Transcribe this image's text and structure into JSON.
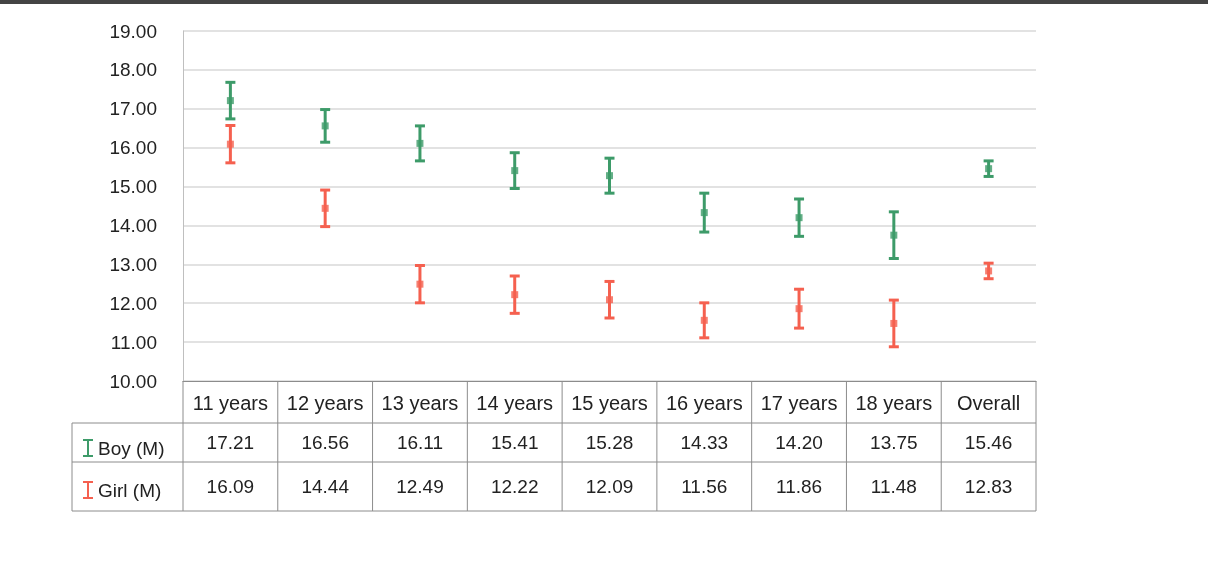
{
  "chart_data": {
    "type": "scatter",
    "categories": [
      "11 years",
      "12 years",
      "13 years",
      "14 years",
      "15 years",
      "16 years",
      "17 years",
      "18 years",
      "Overall"
    ],
    "series": [
      {
        "name": "Boy (M)",
        "color": "#3d9b69",
        "values": [
          17.21,
          16.56,
          16.11,
          15.41,
          15.28,
          14.33,
          14.2,
          13.75,
          15.46
        ],
        "errors": [
          0.47,
          0.42,
          0.45,
          0.46,
          0.45,
          0.5,
          0.48,
          0.6,
          0.2
        ],
        "value_labels": [
          "17.21",
          "16.56",
          "16.11",
          "15.41",
          "15.28",
          "14.33",
          "14.20",
          "13.75",
          "15.46"
        ]
      },
      {
        "name": "Girl (M)",
        "color": "#f5604f",
        "values": [
          16.09,
          14.44,
          12.49,
          12.22,
          12.09,
          11.56,
          11.86,
          11.48,
          12.83
        ],
        "errors": [
          0.48,
          0.47,
          0.48,
          0.48,
          0.47,
          0.45,
          0.5,
          0.6,
          0.2
        ],
        "value_labels": [
          "16.09",
          "14.44",
          "12.49",
          "12.22",
          "12.09",
          "11.56",
          "11.86",
          "11.48",
          "12.83"
        ]
      }
    ],
    "ylim": [
      10,
      19
    ],
    "yticks": [
      {
        "value": 10,
        "label": "10.00"
      },
      {
        "value": 11,
        "label": "11.00"
      },
      {
        "value": 12,
        "label": "12.00"
      },
      {
        "value": 13,
        "label": "13.00"
      },
      {
        "value": 14,
        "label": "14.00"
      },
      {
        "value": 15,
        "label": "15.00"
      },
      {
        "value": 16,
        "label": "16.00"
      },
      {
        "value": 17,
        "label": "17.00"
      },
      {
        "value": 18,
        "label": "18.00"
      },
      {
        "value": 19,
        "label": "19.00"
      }
    ],
    "grid": "y",
    "marker": "square",
    "legend": "bottom left"
  }
}
